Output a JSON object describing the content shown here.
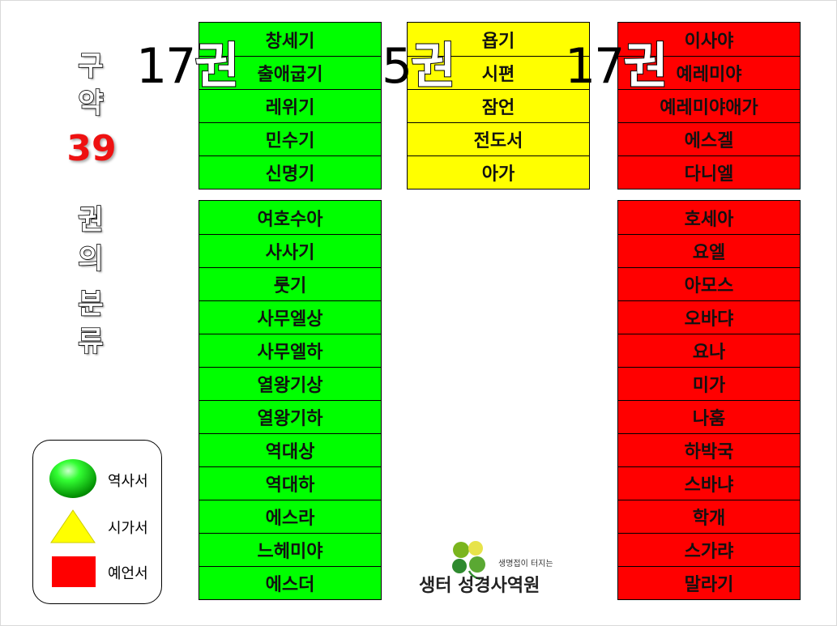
{
  "title": {
    "line1": "구",
    "line2": "약",
    "number": "39",
    "line3": "권",
    "line4": "의",
    "line5": "분",
    "line6": "류"
  },
  "counts": {
    "history": {
      "num": "17",
      "unit": "권"
    },
    "poetry": {
      "num": "5",
      "unit": "권"
    },
    "prophecy": {
      "num": "17",
      "unit": "권"
    }
  },
  "columns": {
    "history_top": [
      "창세기",
      "출애굽기",
      "레위기",
      "민수기",
      "신명기"
    ],
    "history_bottom": [
      "여호수아",
      "사사기",
      "룻기",
      "사무엘상",
      "사무엘하",
      "열왕기상",
      "열왕기하",
      "역대상",
      "역대하",
      "에스라",
      "느헤미야",
      "에스더"
    ],
    "poetry": [
      "욥기",
      "시편",
      "잠언",
      "전도서",
      "아가"
    ],
    "prophecy_top": [
      "이사야",
      "예레미야",
      "예레미야애가",
      "에스겔",
      "다니엘"
    ],
    "prophecy_bottom": [
      "호세아",
      "요엘",
      "아모스",
      "오바댜",
      "요나",
      "미가",
      "나훔",
      "하박국",
      "스바냐",
      "학개",
      "스가랴",
      "말라기"
    ]
  },
  "legend": [
    {
      "label": "역사서",
      "shape": "circle-icon",
      "color": "#00cc00"
    },
    {
      "label": "시가서",
      "shape": "triangle-icon",
      "color": "#ffff00"
    },
    {
      "label": "예언서",
      "shape": "square-icon",
      "color": "#ff0000"
    }
  ],
  "logo": {
    "tagline": "생명접이 터지는",
    "name": "생터 성경사역원"
  },
  "colors": {
    "history": "#00ff00",
    "poetry": "#ffff00",
    "prophecy": "#ff0000"
  }
}
